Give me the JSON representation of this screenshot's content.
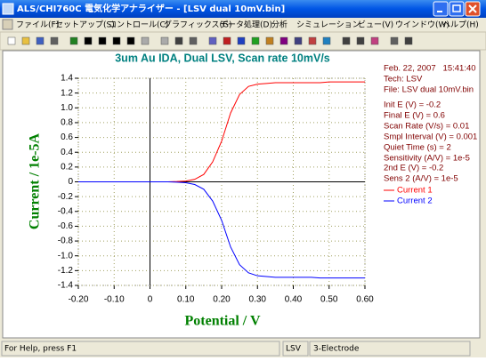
{
  "window": {
    "title": "ALS/CHI760C 電気化学アナライザー - [LSV dual 10mV.bin]"
  },
  "menu": [
    "ファイル(F)",
    "セットアップ(S)",
    "コントロール(C)",
    "グラフィックス(G)",
    "データ処理(D)",
    "分析",
    "シミュレーション",
    "ビュー(V)",
    "ウインドウ(W)",
    "ヘルプ(H)"
  ],
  "chart_data": {
    "type": "line",
    "title": "3um Au IDA, Dual LSV, Scan rate 10mV/s",
    "x_label": "Potential / V",
    "y_label": "Current / 1e-5A",
    "x": [
      -0.2,
      -0.175,
      -0.15,
      -0.125,
      -0.1,
      -0.075,
      -0.05,
      -0.025,
      0,
      0.025,
      0.05,
      0.075,
      0.1,
      0.125,
      0.15,
      0.175,
      0.2,
      0.225,
      0.25,
      0.275,
      0.3,
      0.325,
      0.35,
      0.375,
      0.4,
      0.425,
      0.45,
      0.475,
      0.5,
      0.525,
      0.55,
      0.575,
      0.6
    ],
    "series": [
      {
        "name": "Current 1",
        "color": "#ff0000",
        "values": [
          0,
          0,
          0,
          0,
          0,
          0,
          0,
          0,
          0,
          0,
          0,
          0.004,
          0.011,
          0.034,
          0.1,
          0.27,
          0.55,
          0.93,
          1.18,
          1.29,
          1.32,
          1.33,
          1.34,
          1.34,
          1.34,
          1.34,
          1.34,
          1.34,
          1.35,
          1.35,
          1.35,
          1.35,
          1.35
        ]
      },
      {
        "name": "Current 2",
        "color": "#0000ff",
        "values": [
          0,
          0,
          0,
          0,
          0,
          0,
          0,
          0,
          0,
          0,
          0,
          -0.004,
          -0.012,
          -0.036,
          -0.1,
          -0.26,
          -0.52,
          -0.88,
          -1.12,
          -1.23,
          -1.27,
          -1.28,
          -1.29,
          -1.29,
          -1.29,
          -1.29,
          -1.29,
          -1.3,
          -1.3,
          -1.3,
          -1.3,
          -1.3,
          -1.3
        ]
      }
    ],
    "xlim": [
      -0.2,
      0.6
    ],
    "ylim": [
      -1.4,
      1.4
    ],
    "xticks": [
      {
        "value": -0.2,
        "label": "-0.20"
      },
      {
        "value": -0.1,
        "label": "-0.10"
      },
      0,
      {
        "value": 0.1,
        "label": "0.10"
      },
      {
        "value": 0.2,
        "label": "0.20"
      },
      {
        "value": 0.3,
        "label": "0.30"
      },
      {
        "value": 0.4,
        "label": "0.40"
      },
      {
        "value": 0.5,
        "label": "0.50"
      },
      {
        "value": 0.6,
        "label": "0.60"
      }
    ],
    "yticks": [
      1.4,
      1.2,
      {
        "value": 1.0,
        "label": "1.0"
      },
      0.8,
      0.6,
      0.4,
      0.2,
      0,
      -0.2,
      -0.4,
      -0.6,
      -0.8,
      {
        "value": -1.0,
        "label": "-1.0"
      },
      -1.2,
      -1.4
    ],
    "grid": true
  },
  "info": [
    "Feb. 22, 2007   15:41:40",
    "Tech: LSV",
    "File: LSV dual 10mV.bin",
    "Init E (V) = -0.2",
    "Final E (V) = 0.6",
    "Scan Rate (V/s) = 0.01",
    "Smpl Interval (V) = 0.001",
    "Quiet Time (s) = 2",
    "Sensitivity (A/V) = 1e-5",
    "2nd E (V) = -0.2",
    "Sens 2 (A/V) = 1e-5"
  ],
  "status": [
    "For Help, press F1",
    "LSV",
    "3-Electrode"
  ]
}
